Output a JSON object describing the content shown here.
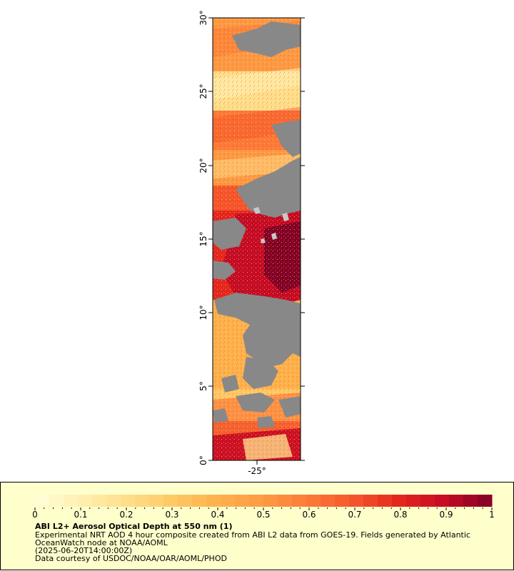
{
  "map": {
    "lat_ticks": [
      "0°",
      "5°",
      "10°",
      "15°",
      "20°",
      "25°",
      "30°"
    ],
    "lon_ticks": [
      "-25°"
    ],
    "land_color": "#888888",
    "cloud_color": "#c8c8c8"
  },
  "legend": {
    "ticks": [
      "0",
      "0.1",
      "0.2",
      "0.3",
      "0.4",
      "0.5",
      "0.6",
      "0.7",
      "0.8",
      "0.9",
      "1"
    ],
    "colors": [
      "#ffffd9",
      "#fff0b0",
      "#ffdf8c",
      "#fec965",
      "#feb24c",
      "#fd9a44",
      "#fc7a37",
      "#f5552b",
      "#e3261e",
      "#c40b25",
      "#800026"
    ],
    "background": "#ffffcc"
  },
  "caption": {
    "title": "ABI L2+ Aerosol Optical Depth at 550 nm (1)",
    "desc_line1": "Experimental NRT AOD 4 hour composite created from ABI L2 data from GOES-19. Fields generated by Atlantic",
    "desc_line2": "OceanWatch node at NOAA/AOML",
    "date": "(2025-06-20T14:00:00Z)",
    "credit": "Data courtesy of USDOC/NOAA/OAR/AOML/PHOD"
  }
}
